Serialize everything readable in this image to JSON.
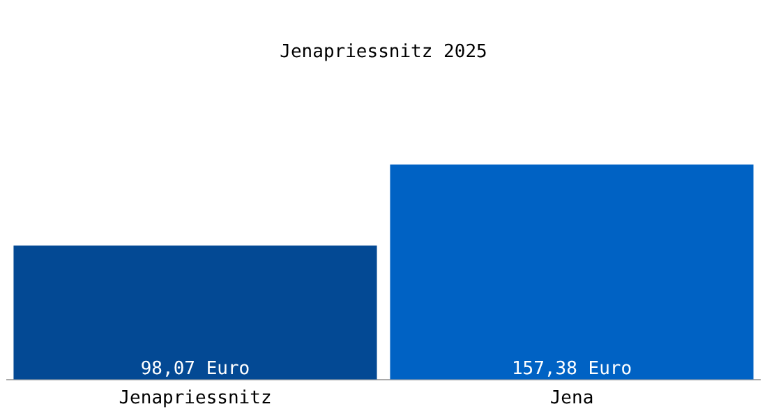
{
  "chart_data": {
    "type": "bar",
    "title": "Jenapriessnitz 2025",
    "categories": [
      "Jenapriessnitz",
      "Jena"
    ],
    "values": [
      98.07,
      157.38
    ],
    "colors": [
      "#034994",
      "#0062c4"
    ],
    "value_labels": [
      "98,07 Euro",
      "157,38 Euro"
    ],
    "grid": false,
    "legend": false,
    "tick_labels": "x"
  }
}
